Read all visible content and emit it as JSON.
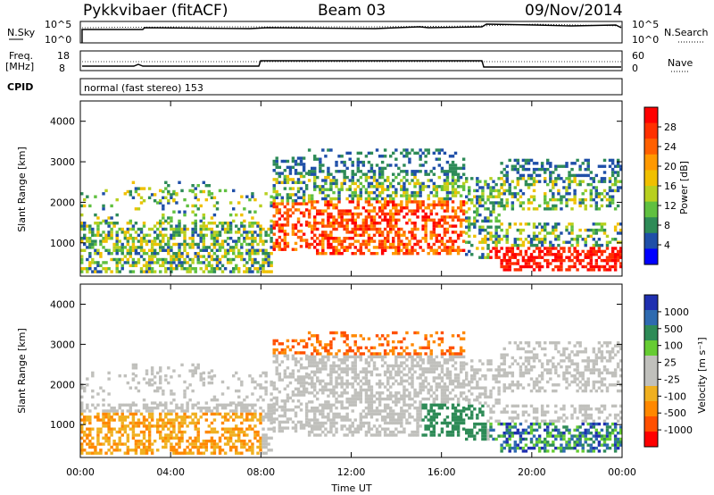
{
  "header": {
    "station": "Pykkvibaer (fitACF)",
    "beam": "Beam 03",
    "date": "09/Nov/2014"
  },
  "sky_panel": {
    "left_label": "N.Sky",
    "right_label": "N.Search",
    "tick_top": "10^5",
    "tick_bottom": "10^0"
  },
  "freq_panel": {
    "left_label_1": "Freq.",
    "left_label_2": "[MHz]",
    "left_tick_top": "18",
    "left_tick_bottom": "8",
    "right_tick_top": "60",
    "right_tick_bottom": "0",
    "right_label": "Nave"
  },
  "cpid": {
    "label": "CPID",
    "mode": "normal (fast stereo) 153"
  },
  "x_axis": {
    "label": "Time UT",
    "ticks": [
      "00:00",
      "04:00",
      "08:00",
      "12:00",
      "16:00",
      "20:00",
      "00:00"
    ]
  },
  "chart_data": [
    {
      "type": "heatmap",
      "panel": "power",
      "x_range_hours": [
        0,
        24
      ],
      "ylabel": "Slant Range [km]",
      "yticks": [
        1000,
        2000,
        3000,
        4000
      ],
      "ylim": [
        180,
        4500
      ],
      "colorbar": {
        "label": "Power [dB]",
        "ticks": [
          "28",
          "24",
          "20",
          "16",
          "12",
          "8",
          "4"
        ],
        "colors": [
          "#ff0000",
          "#ff3000",
          "#ff6000",
          "#ff9900",
          "#f0c000",
          "#b8d020",
          "#60c040",
          "#2e8b57",
          "#1f4fa8",
          "#0000ff"
        ]
      }
    },
    {
      "type": "heatmap",
      "panel": "velocity",
      "x_range_hours": [
        0,
        24
      ],
      "ylabel": "Slant Range [km]",
      "yticks": [
        1000,
        2000,
        3000,
        4000
      ],
      "ylim": [
        180,
        4500
      ],
      "colorbar": {
        "label": "Velocity [m s⁻¹]",
        "ticks": [
          "1000",
          "500",
          "100",
          "25",
          "-25",
          "-100",
          "-500",
          "-1000"
        ],
        "colors": [
          "#1f2fb0",
          "#2e6ab0",
          "#2e8b57",
          "#66cc33",
          "#c0c0bc",
          "#c0c0bc",
          "#f0b020",
          "#ff8800",
          "#ff5000",
          "#ff0000"
        ]
      }
    }
  ]
}
